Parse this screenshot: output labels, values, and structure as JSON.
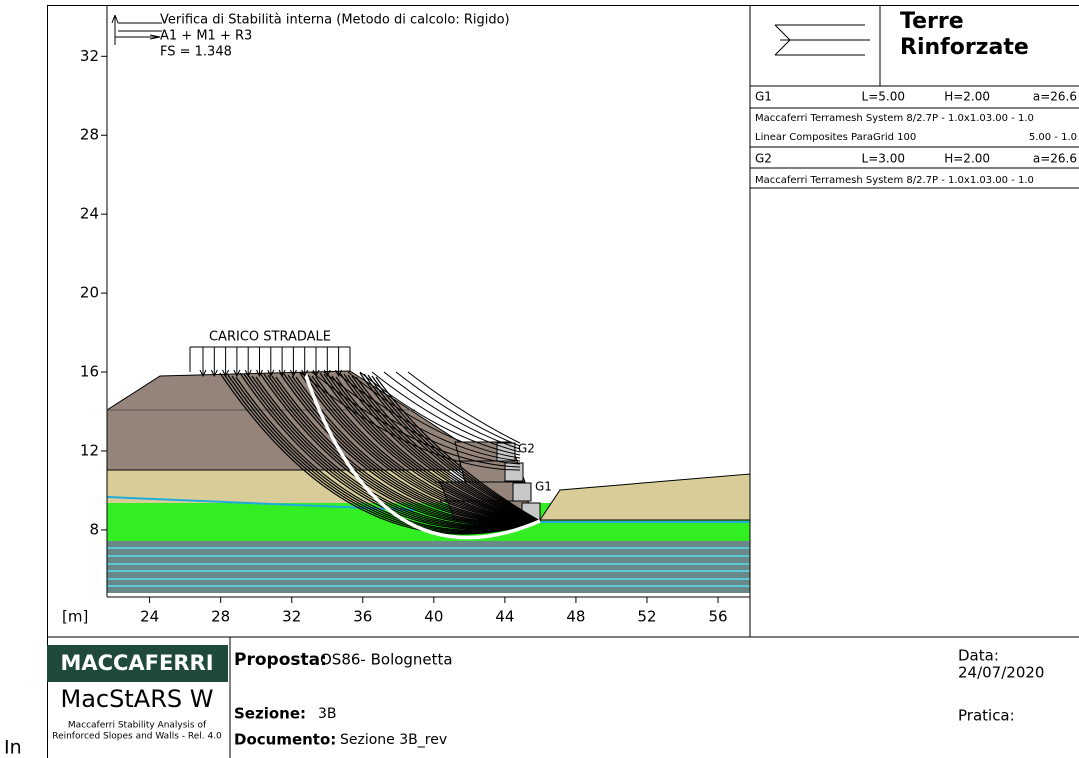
{
  "plot": {
    "title_lines": [
      "Verifica di Stabilità interna (Metodo di calcolo: Rigido)",
      "A1 + M1 + R3",
      "FS = 1.348"
    ],
    "unit_label": "[m]",
    "xlim": [
      21.6,
      57.8
    ],
    "ylim": [
      4.6,
      34.6
    ],
    "xticks": [
      24,
      28,
      32,
      36,
      40,
      44,
      48,
      52,
      56
    ],
    "yticks": [
      8,
      12,
      16,
      20,
      24,
      28,
      32
    ],
    "load_label": "CARICO STRADALE",
    "block_labels": [
      "G2",
      "G1"
    ]
  },
  "panel": {
    "title_lines": [
      "Terre",
      "Rinforzate"
    ],
    "groups": [
      {
        "name": "G1",
        "L": "L=5.00",
        "H": "H=2.00",
        "a": "a=26.6",
        "items": [
          [
            "Maccaferri Terramesh System 8/2.7P - 1.0x1.03.00 - 1.0"
          ],
          [
            "Linear Composites ParaGrid 100",
            "5.00 - 1.0"
          ]
        ]
      },
      {
        "name": "G2",
        "L": "L=3.00",
        "H": "H=2.00",
        "a": "a=26.6",
        "items": [
          [
            "Maccaferri Terramesh System 8/2.7P - 1.0x1.03.00 - 1.0"
          ]
        ]
      }
    ]
  },
  "footer": {
    "brand": "MACCAFERRI",
    "software": "MacStARS W",
    "software_sub": [
      "Maccaferri Stability Analysis of",
      "Reinforced Slopes and Walls - Rel. 4.0"
    ],
    "proposta": {
      "label": "Proposta:",
      "value": "OS86- Bolognetta"
    },
    "sezione": {
      "label": "Sezione:",
      "value": "3B"
    },
    "documento": {
      "label": "Documento:",
      "value": "Sezione 3B_rev"
    },
    "data": {
      "label": "Data:",
      "value": "24/07/2020"
    },
    "pratica": "Pratica:"
  },
  "stray": "In"
}
